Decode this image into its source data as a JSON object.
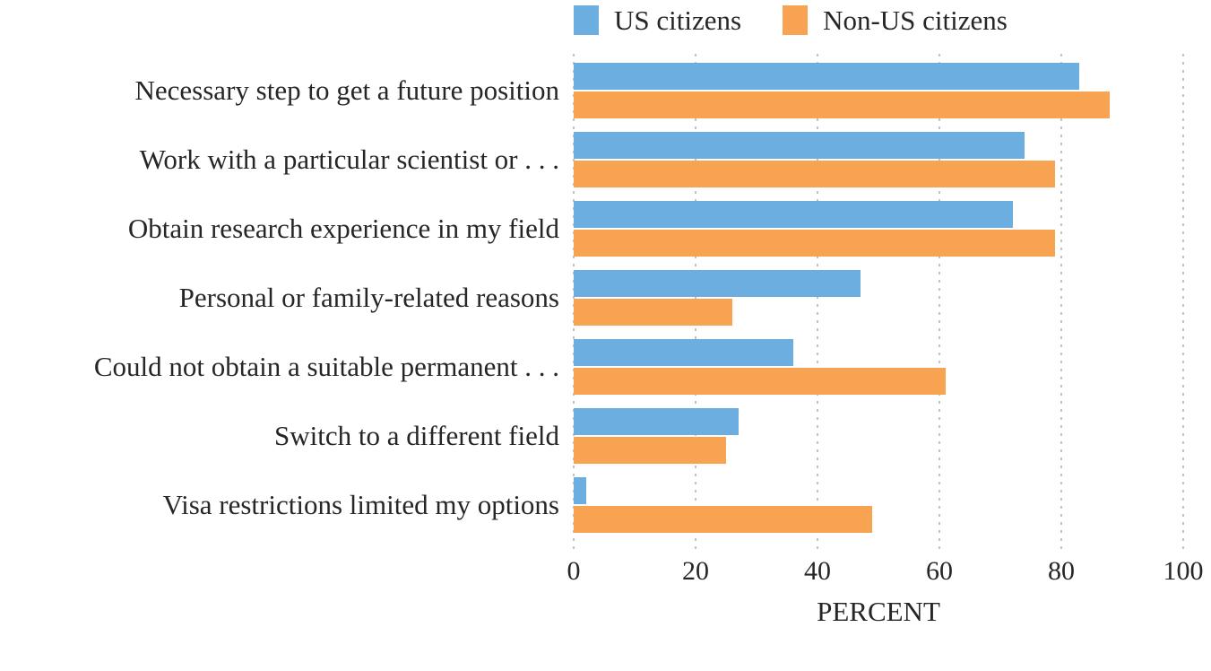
{
  "chart_data": {
    "type": "bar",
    "orientation": "horizontal",
    "categories": [
      "Necessary step to get a future position",
      "Work with a particular scientist or . . .",
      "Obtain research experience in my field",
      "Personal or family-related reasons",
      "Could not obtain a suitable permanent . . .",
      "Switch to a different field",
      "Visa restrictions limited my options"
    ],
    "series": [
      {
        "name": "US citizens",
        "color": "#6CAEDF",
        "values": [
          83,
          74,
          72,
          47,
          36,
          27,
          2
        ]
      },
      {
        "name": "Non-US citizens",
        "color": "#F8A352",
        "values": [
          88,
          79,
          79,
          26,
          61,
          25,
          49
        ]
      }
    ],
    "xlabel": "PERCENT",
    "xlim": [
      0,
      100
    ],
    "xticks": [
      0,
      20,
      40,
      60,
      80,
      100
    ],
    "grid": "vertical-dotted",
    "legend_position": "top-right"
  },
  "colors": {
    "us_citizens": "#6CAEDF",
    "non_us_citizens": "#F8A352",
    "gridline": "#C2C2C2",
    "text": "#262626",
    "background": "#FFFFFF"
  }
}
